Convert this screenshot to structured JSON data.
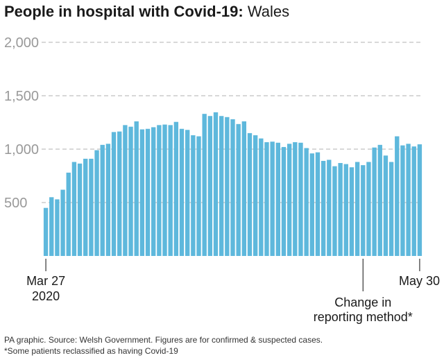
{
  "title_bold": "People in hospital with Covid-19:",
  "title_light": "Wales",
  "colors": {
    "bar": "#5eb8dc",
    "grid": "#b0b0b0",
    "text": "#1a1a1a",
    "tick_text": "#999999"
  },
  "annotation": {
    "line1": "Change in",
    "line2": "reporting method*"
  },
  "footer": {
    "source": "PA graphic. Source: Welsh Government. Figures are for confirmed & suspected cases.",
    "note": "*Some patients reclassified as having Covid-19"
  },
  "chart_data": {
    "type": "bar",
    "title": "People in hospital with Covid-19: Wales",
    "xlabel": "",
    "ylabel": "",
    "ylim": [
      0,
      2000
    ],
    "yticks": [
      500,
      1000,
      1500,
      2000
    ],
    "ytick_labels": [
      "500",
      "1,000",
      "1,500",
      "2,000"
    ],
    "x_start_label": [
      "Mar 27",
      "2020"
    ],
    "x_end_label": [
      "May 30"
    ],
    "annotation_index": 56,
    "values": [
      450,
      550,
      530,
      620,
      780,
      880,
      865,
      910,
      910,
      990,
      1040,
      1050,
      1160,
      1165,
      1225,
      1210,
      1260,
      1185,
      1190,
      1205,
      1225,
      1230,
      1225,
      1255,
      1190,
      1180,
      1130,
      1120,
      1330,
      1310,
      1345,
      1310,
      1300,
      1280,
      1235,
      1260,
      1150,
      1130,
      1100,
      1065,
      1070,
      1060,
      1020,
      1050,
      1065,
      1060,
      1010,
      960,
      970,
      890,
      900,
      840,
      870,
      860,
      830,
      880,
      850,
      880,
      1015,
      1040,
      940,
      880,
      1120,
      1035,
      1050,
      1025,
      1045
    ]
  }
}
